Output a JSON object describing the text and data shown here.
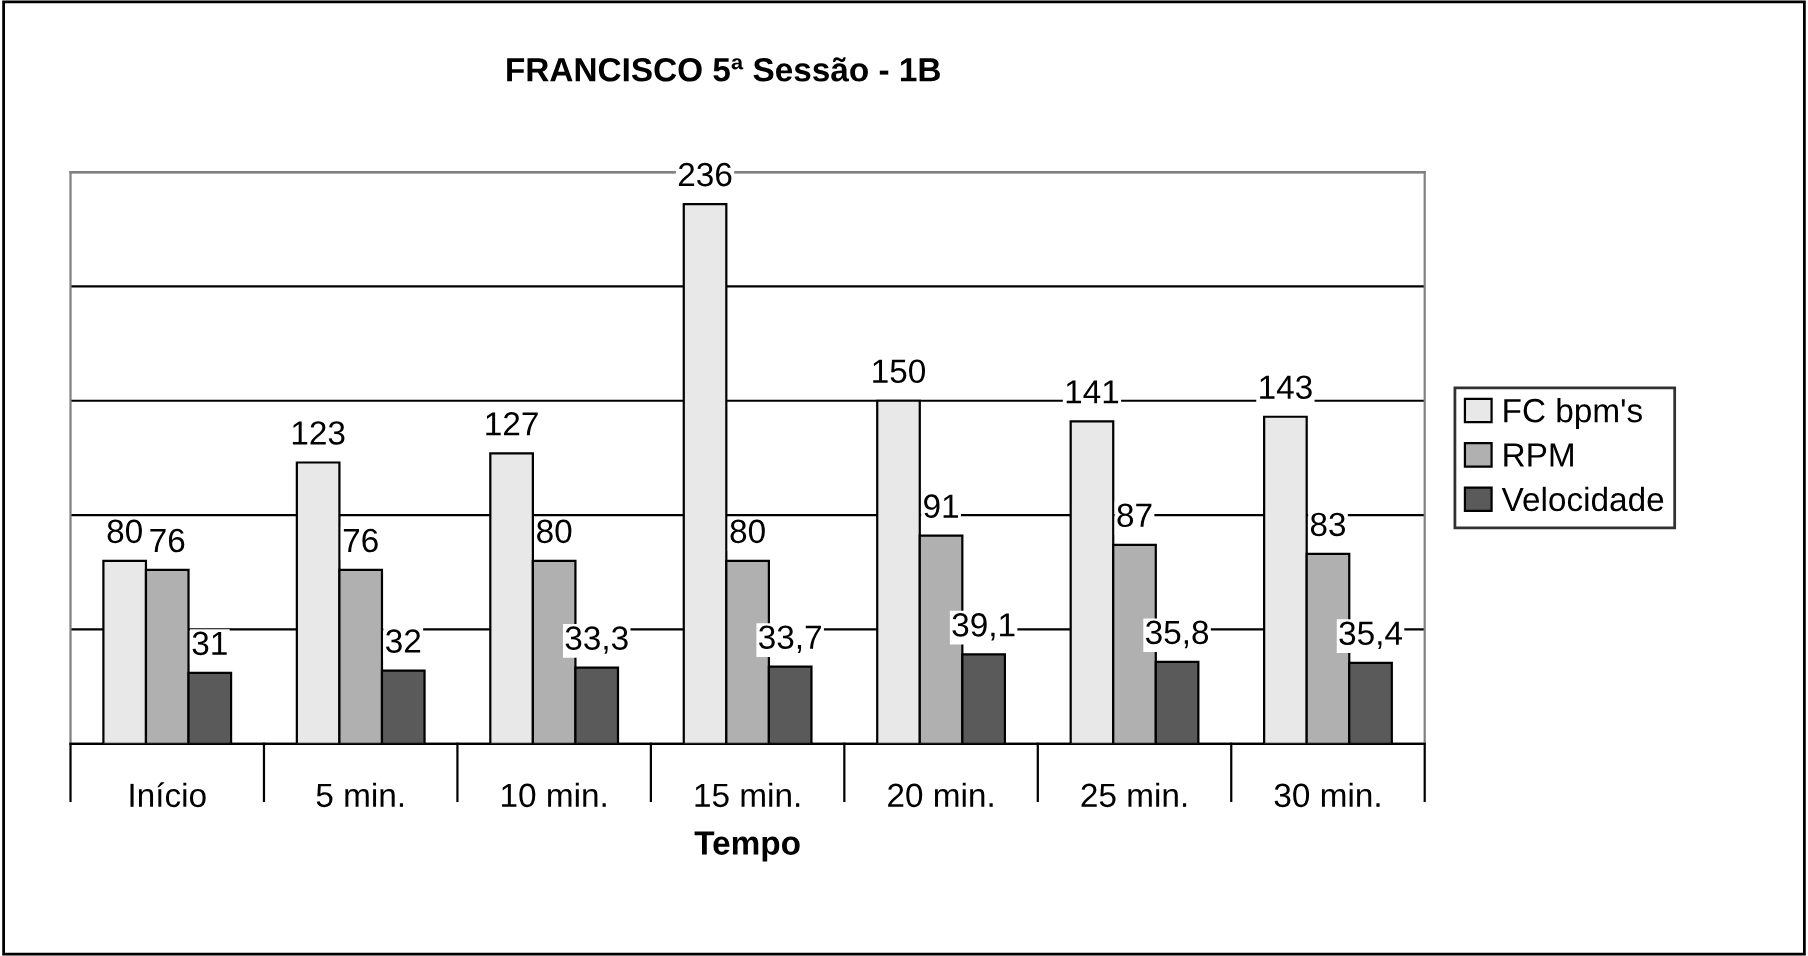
{
  "chart_data": {
    "type": "bar",
    "title": "FRANCISCO 5ª Sessão - 1B",
    "xlabel": "Tempo",
    "categories": [
      "Início",
      "5 min.",
      "10 min.",
      "15 min.",
      "20 min.",
      "25 min.",
      "30 min."
    ],
    "series": [
      {
        "name": "FC bpm's",
        "color": "#e8e8e8",
        "values": [
          80,
          123,
          127,
          236,
          150,
          141,
          143
        ],
        "value_labels": [
          "80",
          "123",
          "127",
          "236",
          "150",
          "141",
          "143"
        ]
      },
      {
        "name": "RPM",
        "color": "#b0b0b0",
        "values": [
          76,
          76,
          80,
          80,
          91,
          87,
          83
        ],
        "value_labels": [
          "76",
          "76",
          "80",
          "80",
          "91",
          "87",
          "83"
        ]
      },
      {
        "name": "Velocidade",
        "color": "#5a5a5a",
        "values": [
          31,
          32,
          33.3,
          33.7,
          39.1,
          35.8,
          35.4
        ],
        "value_labels": [
          "31",
          "32",
          "33,3",
          "33,7",
          "39,1",
          "35,8",
          "35,4"
        ]
      }
    ],
    "ylim": [
      0,
      250
    ],
    "yticks": [
      {
        "value": 0,
        "label": null
      },
      {
        "value": 50,
        "label": null
      },
      {
        "value": 100,
        "label": null
      },
      {
        "value": 150,
        "label": null
      },
      {
        "value": 200,
        "label": null
      },
      {
        "value": 250,
        "label": null
      }
    ],
    "tick_labels": "x",
    "grid": "y",
    "legend": "right"
  }
}
